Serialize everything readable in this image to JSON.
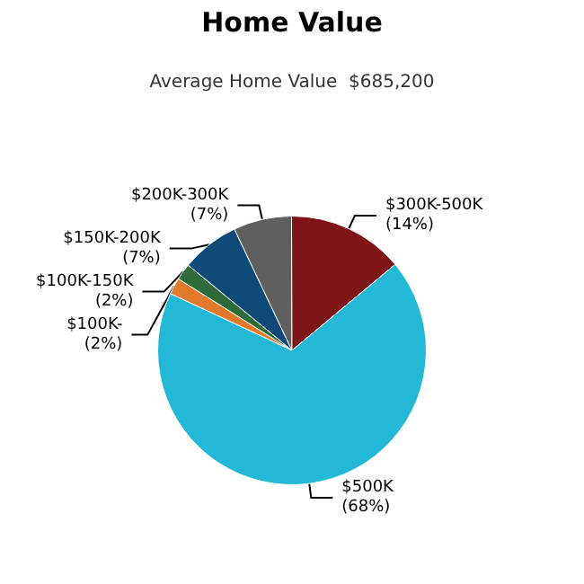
{
  "chart_data": {
    "type": "pie",
    "title": "Home Value",
    "subtitle": "Average Home Value  $685,200",
    "categories": [
      "$100K-",
      "$100K-150K",
      "$150K-200K",
      "$200K-300K",
      "$300K-500K",
      "$500K"
    ],
    "values": [
      2,
      2,
      7,
      7,
      14,
      68
    ],
    "value_labels": [
      "(2%)",
      "(2%)",
      "(7%)",
      "(7%)",
      "(14%)",
      "(68%)"
    ],
    "colors": [
      "#e07a2a",
      "#2e6b3a",
      "#0e4a78",
      "#5f5f5f",
      "#7f1416",
      "#22b8d6"
    ]
  }
}
